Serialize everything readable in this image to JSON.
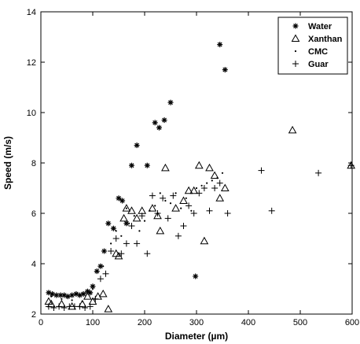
{
  "chart_data": {
    "type": "scatter",
    "xlabel": "Diameter (µm)",
    "ylabel": "Speed (m/s)",
    "xlim": [
      0,
      600
    ],
    "ylim": [
      2,
      14
    ],
    "xticks": [
      0,
      100,
      200,
      300,
      400,
      500,
      600
    ],
    "yticks": [
      2,
      4,
      6,
      8,
      10,
      12,
      14
    ],
    "legend_position": "top-right",
    "grid": false,
    "series": [
      {
        "name": "Water",
        "marker": "star",
        "points": [
          [
            15,
            2.85
          ],
          [
            22,
            2.8
          ],
          [
            30,
            2.75
          ],
          [
            38,
            2.75
          ],
          [
            45,
            2.75
          ],
          [
            52,
            2.7
          ],
          [
            60,
            2.75
          ],
          [
            68,
            2.8
          ],
          [
            75,
            2.75
          ],
          [
            82,
            2.8
          ],
          [
            90,
            2.9
          ],
          [
            95,
            2.85
          ],
          [
            100,
            3.1
          ],
          [
            108,
            3.7
          ],
          [
            115,
            3.9
          ],
          [
            122,
            4.5
          ],
          [
            130,
            5.6
          ],
          [
            140,
            5.4
          ],
          [
            150,
            6.6
          ],
          [
            157,
            6.5
          ],
          [
            165,
            5.6
          ],
          [
            175,
            7.9
          ],
          [
            185,
            8.7
          ],
          [
            205,
            7.9
          ],
          [
            220,
            9.6
          ],
          [
            228,
            9.4
          ],
          [
            238,
            9.7
          ],
          [
            250,
            10.4
          ],
          [
            298,
            3.5
          ],
          [
            345,
            12.7
          ],
          [
            355,
            11.7
          ]
        ]
      },
      {
        "name": "Xanthan",
        "marker": "triangle",
        "points": [
          [
            15,
            2.5
          ],
          [
            20,
            2.4
          ],
          [
            40,
            2.4
          ],
          [
            60,
            2.3
          ],
          [
            80,
            2.4
          ],
          [
            90,
            2.7
          ],
          [
            100,
            2.5
          ],
          [
            110,
            2.7
          ],
          [
            120,
            2.8
          ],
          [
            130,
            2.2
          ],
          [
            145,
            4.4
          ],
          [
            150,
            4.3
          ],
          [
            160,
            5.8
          ],
          [
            165,
            6.2
          ],
          [
            175,
            6.1
          ],
          [
            185,
            5.8
          ],
          [
            195,
            6.1
          ],
          [
            215,
            6.2
          ],
          [
            225,
            5.9
          ],
          [
            230,
            5.3
          ],
          [
            240,
            7.8
          ],
          [
            260,
            6.2
          ],
          [
            275,
            6.5
          ],
          [
            285,
            6.9
          ],
          [
            295,
            6.9
          ],
          [
            305,
            7.9
          ],
          [
            315,
            4.9
          ],
          [
            325,
            7.8
          ],
          [
            335,
            7.5
          ],
          [
            345,
            6.6
          ],
          [
            355,
            7.0
          ],
          [
            485,
            9.3
          ],
          [
            598,
            7.9
          ]
        ]
      },
      {
        "name": "CMC",
        "marker": "dot",
        "points": [
          [
            20,
            2.7
          ],
          [
            40,
            2.6
          ],
          [
            60,
            2.55
          ],
          [
            80,
            2.5
          ],
          [
            100,
            3.0
          ],
          [
            120,
            3.9
          ],
          [
            135,
            4.8
          ],
          [
            145,
            5.3
          ],
          [
            155,
            5.1
          ],
          [
            165,
            6.2
          ],
          [
            170,
            5.6
          ],
          [
            180,
            5.9
          ],
          [
            190,
            5.3
          ],
          [
            200,
            5.7
          ],
          [
            210,
            6.1
          ],
          [
            220,
            6.3
          ],
          [
            230,
            6.8
          ],
          [
            240,
            6.5
          ],
          [
            250,
            6.4
          ],
          [
            260,
            6.8
          ],
          [
            270,
            6.2
          ],
          [
            280,
            6.6
          ],
          [
            290,
            6.1
          ],
          [
            300,
            7.0
          ],
          [
            310,
            7.1
          ],
          [
            320,
            7.2
          ],
          [
            330,
            7.3
          ],
          [
            340,
            7.4
          ],
          [
            350,
            7.6
          ]
        ]
      },
      {
        "name": "Guar",
        "marker": "plus",
        "points": [
          [
            15,
            2.3
          ],
          [
            25,
            2.25
          ],
          [
            35,
            2.3
          ],
          [
            45,
            2.25
          ],
          [
            55,
            2.3
          ],
          [
            65,
            2.3
          ],
          [
            75,
            2.3
          ],
          [
            85,
            2.25
          ],
          [
            95,
            2.3
          ],
          [
            105,
            2.6
          ],
          [
            115,
            3.4
          ],
          [
            125,
            3.6
          ],
          [
            135,
            4.5
          ],
          [
            145,
            5.0
          ],
          [
            155,
            4.4
          ],
          [
            165,
            4.8
          ],
          [
            175,
            5.5
          ],
          [
            185,
            4.8
          ],
          [
            195,
            5.9
          ],
          [
            205,
            4.4
          ],
          [
            215,
            6.7
          ],
          [
            225,
            6.0
          ],
          [
            235,
            6.6
          ],
          [
            245,
            5.8
          ],
          [
            255,
            6.7
          ],
          [
            265,
            5.1
          ],
          [
            275,
            5.5
          ],
          [
            285,
            6.3
          ],
          [
            295,
            6.0
          ],
          [
            305,
            6.8
          ],
          [
            315,
            7.0
          ],
          [
            325,
            6.1
          ],
          [
            335,
            7.0
          ],
          [
            345,
            7.2
          ],
          [
            360,
            6.0
          ],
          [
            425,
            7.7
          ],
          [
            445,
            6.1
          ],
          [
            535,
            7.6
          ],
          [
            598,
            7.9
          ]
        ]
      }
    ]
  }
}
